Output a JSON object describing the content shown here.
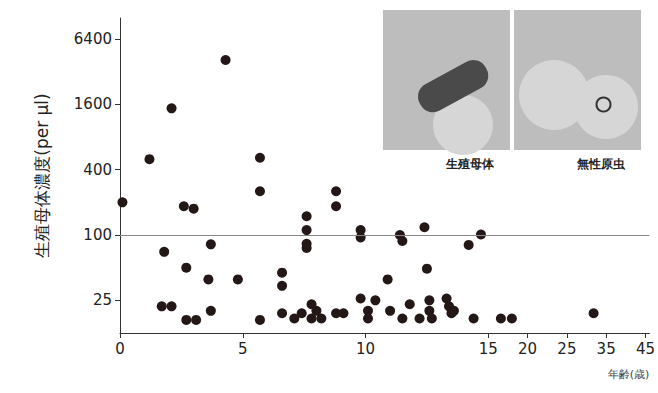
{
  "chart_data": {
    "type": "scatter",
    "x_label": "年齢(歳)",
    "y_label": "生殖母体濃度(per μl)",
    "annotations": [
      "生殖母体",
      "無性原虫"
    ],
    "x": [
      0.1,
      1.2,
      2.1,
      4.3,
      1.8,
      1.7,
      2.1,
      2.6,
      3.0,
      2.7,
      2.7,
      3.1,
      3.7,
      3.6,
      3.7,
      4.8,
      5.7,
      5.7,
      5.7,
      6.6,
      6.6,
      6.6,
      7.1,
      7.4,
      7.6,
      7.6,
      7.6,
      7.6,
      7.8,
      7.8,
      8.0,
      8.2,
      8.8,
      8.8,
      8.8,
      9.1,
      9.8,
      9.8,
      9.8,
      10.1,
      10.1,
      10.4,
      10.9,
      11.0,
      11.4,
      11.5,
      11.5,
      11.8,
      12.2,
      12.4,
      12.5,
      12.6,
      12.6,
      12.7,
      13.3,
      13.4,
      13.5,
      13.6,
      14.4,
      14.2,
      14.7,
      16.6,
      18,
      31.8
    ],
    "values": [
      200,
      500,
      1470,
      4100,
      70,
      22,
      22,
      184,
      175,
      50,
      16.5,
      16.5,
      82,
      39,
      20,
      39,
      16.5,
      515,
      253,
      45,
      34,
      19,
      17,
      19,
      149,
      111,
      83,
      76,
      23,
      17,
      20,
      17,
      253,
      184,
      19,
      19,
      111,
      95,
      26,
      20,
      17,
      25,
      39,
      20,
      100,
      88,
      17,
      23,
      17,
      118,
      49,
      25,
      20,
      17,
      26,
      22,
      19,
      20,
      17,
      81,
      101,
      17,
      17,
      19
    ],
    "color": "#231815",
    "marker": "circle",
    "xlim": [
      0,
      46
    ],
    "xticks": [
      0,
      5,
      10,
      15,
      20,
      25,
      35,
      45
    ],
    "ylim": [
      12.5,
      10000
    ],
    "yticks": [
      25,
      100,
      400,
      1600,
      6400
    ],
    "log": "y",
    "grid": false,
    "threshold": 100
  }
}
